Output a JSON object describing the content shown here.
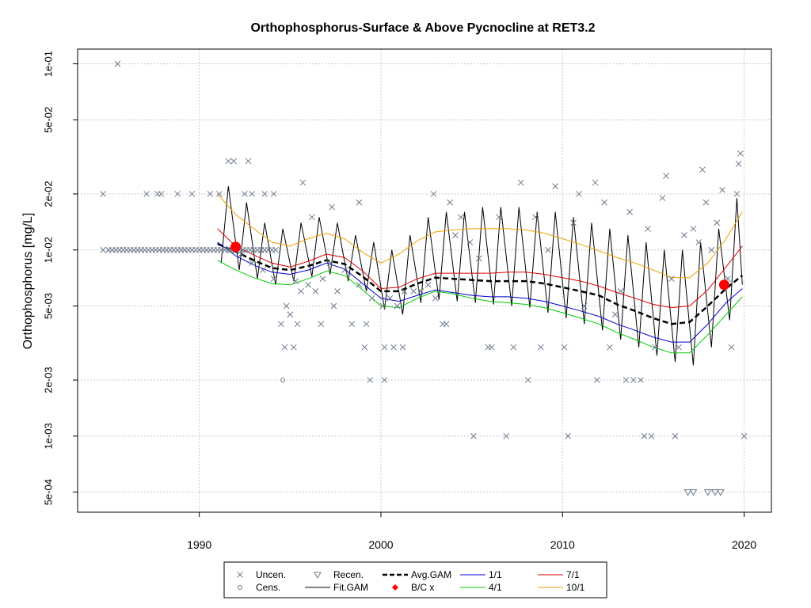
{
  "chart_data": {
    "type": "scatter",
    "title": "Orthophosphorus-Surface & Above Pycnocline at RET3.2",
    "xlabel": "",
    "ylabel": "Orthophosphorus [mg/L]",
    "y_scale": "log",
    "xlim": [
      1983.3,
      2021.5
    ],
    "ylim": [
      0.00039,
      0.12
    ],
    "x_ticks": [
      {
        "value": 1990,
        "label": "1990"
      },
      {
        "value": 2000,
        "label": "2000"
      },
      {
        "value": 2010,
        "label": "2010"
      },
      {
        "value": 2020,
        "label": "2020"
      }
    ],
    "y_ticks": [
      {
        "value": 0.1,
        "label": "1e-01"
      },
      {
        "value": 0.05,
        "label": "5e-02"
      },
      {
        "value": 0.02,
        "label": "2e-02"
      },
      {
        "value": 0.01,
        "label": "1e-02"
      },
      {
        "value": 0.005,
        "label": "5e-03"
      },
      {
        "value": 0.002,
        "label": "2e-03"
      },
      {
        "value": 0.001,
        "label": "1e-03"
      },
      {
        "value": 0.0005,
        "label": "5e-04"
      }
    ],
    "grid": true,
    "colors": {
      "points": "#6b7a8c",
      "fit": "#000000",
      "avg": "#000000",
      "month_1": "#0000cc",
      "month_4": "#00cc00",
      "month_7": "#dd0000",
      "month_10": "#f0a000",
      "bc": "#ff0000",
      "grid": "#c8c8c8"
    },
    "uncensored_points": [
      [
        1984.7,
        0.01
      ],
      [
        1985,
        0.01
      ],
      [
        1985.2,
        0.01
      ],
      [
        1985.4,
        0.01
      ],
      [
        1985.6,
        0.01
      ],
      [
        1985.8,
        0.01
      ],
      [
        1986,
        0.01
      ],
      [
        1986.2,
        0.01
      ],
      [
        1986.4,
        0.01
      ],
      [
        1986.6,
        0.01
      ],
      [
        1986.8,
        0.01
      ],
      [
        1987,
        0.01
      ],
      [
        1987.2,
        0.01
      ],
      [
        1987.4,
        0.01
      ],
      [
        1987.6,
        0.01
      ],
      [
        1987.8,
        0.01
      ],
      [
        1988,
        0.01
      ],
      [
        1988.2,
        0.01
      ],
      [
        1988.4,
        0.01
      ],
      [
        1988.6,
        0.01
      ],
      [
        1988.8,
        0.01
      ],
      [
        1989,
        0.01
      ],
      [
        1989.2,
        0.01
      ],
      [
        1989.4,
        0.01
      ],
      [
        1989.6,
        0.01
      ],
      [
        1989.8,
        0.01
      ],
      [
        1990,
        0.01
      ],
      [
        1990.2,
        0.01
      ],
      [
        1990.4,
        0.01
      ],
      [
        1990.6,
        0.01
      ],
      [
        1990.8,
        0.01
      ],
      [
        1991,
        0.01
      ],
      [
        1991.2,
        0.01
      ],
      [
        1991.4,
        0.01
      ],
      [
        1991.6,
        0.01
      ],
      [
        1991.8,
        0.01
      ],
      [
        1992,
        0.01
      ],
      [
        1992.2,
        0.01
      ],
      [
        1992.4,
        0.01
      ],
      [
        1992.6,
        0.01
      ],
      [
        1992.8,
        0.01
      ],
      [
        1993,
        0.01
      ],
      [
        1993.2,
        0.01
      ],
      [
        1993.4,
        0.01
      ],
      [
        1993.6,
        0.01
      ],
      [
        1993.8,
        0.01
      ],
      [
        1994,
        0.01
      ],
      [
        1994.2,
        0.01
      ],
      [
        1984.7,
        0.02
      ],
      [
        1985.5,
        0.1
      ],
      [
        1987.1,
        0.02
      ],
      [
        1987.7,
        0.02
      ],
      [
        1987.9,
        0.02
      ],
      [
        1988.8,
        0.02
      ],
      [
        1989.6,
        0.02
      ],
      [
        1990.6,
        0.02
      ],
      [
        1991.1,
        0.02
      ],
      [
        1991.6,
        0.03
      ],
      [
        1991.9,
        0.03
      ],
      [
        1992.5,
        0.02
      ],
      [
        1992.9,
        0.02
      ],
      [
        1993.6,
        0.02
      ],
      [
        1994.1,
        0.02
      ],
      [
        1992.7,
        0.03
      ],
      [
        1995.7,
        0.023
      ],
      [
        1996.2,
        0.015
      ],
      [
        1997.3,
        0.017
      ],
      [
        1998.8,
        0.018
      ],
      [
        1991.7,
        0.01
      ],
      [
        1992.3,
        0.0095
      ],
      [
        1992.9,
        0.0085
      ],
      [
        1993.5,
        0.0078
      ],
      [
        1994.1,
        0.007
      ],
      [
        1994.5,
        0.004
      ],
      [
        1994.8,
        0.005
      ],
      [
        1995,
        0.0045
      ],
      [
        1995.3,
        0.0068
      ],
      [
        1995.6,
        0.006
      ],
      [
        1996,
        0.0065
      ],
      [
        1996.4,
        0.006
      ],
      [
        1996.8,
        0.007
      ],
      [
        1997.2,
        0.0085
      ],
      [
        1997.6,
        0.006
      ],
      [
        1998,
        0.0078
      ],
      [
        1998.4,
        0.004
      ],
      [
        1998.8,
        0.0065
      ],
      [
        1999.2,
        0.004
      ],
      [
        1999.5,
        0.0055
      ],
      [
        1994.7,
        0.003
      ],
      [
        1995.2,
        0.003
      ],
      [
        1995.4,
        0.004
      ],
      [
        1996.7,
        0.004
      ],
      [
        1997.4,
        0.005
      ],
      [
        1999.1,
        0.003
      ],
      [
        1999.4,
        0.002
      ],
      [
        2000.2,
        0.002
      ],
      [
        2000.2,
        0.003
      ],
      [
        2000.7,
        0.003
      ],
      [
        2001.2,
        0.003
      ],
      [
        2000.1,
        0.005
      ],
      [
        2000.5,
        0.0055
      ],
      [
        2000.9,
        0.005
      ],
      [
        2001.3,
        0.006
      ],
      [
        2001.8,
        0.006
      ],
      [
        2002.2,
        0.006
      ],
      [
        2002.6,
        0.0065
      ],
      [
        2003.0,
        0.0055
      ],
      [
        2003.4,
        0.004
      ],
      [
        2003.6,
        0.004
      ],
      [
        2002.9,
        0.02
      ],
      [
        2003.8,
        0.018
      ],
      [
        2004.1,
        0.012
      ],
      [
        2004.4,
        0.015
      ],
      [
        2004.9,
        0.011
      ],
      [
        2005.1,
        0.001
      ],
      [
        2005.4,
        0.009
      ],
      [
        2005.9,
        0.003
      ],
      [
        2006.1,
        0.003
      ],
      [
        2006.5,
        0.015
      ],
      [
        2006.9,
        0.001
      ],
      [
        2007.3,
        0.003
      ],
      [
        2007.7,
        0.023
      ],
      [
        2008.1,
        0.002
      ],
      [
        2008.5,
        0.015
      ],
      [
        2008.8,
        0.003
      ],
      [
        2009.2,
        0.01
      ],
      [
        2009.6,
        0.022
      ],
      [
        2010.1,
        0.003
      ],
      [
        2010.3,
        0.001
      ],
      [
        2010.6,
        0.014
      ],
      [
        2010.9,
        0.02
      ],
      [
        2011.2,
        0.005
      ],
      [
        2011.8,
        0.023
      ],
      [
        2011.9,
        0.002
      ],
      [
        2012.3,
        0.018
      ],
      [
        2012.6,
        0.003
      ],
      [
        2012.9,
        0.0045
      ],
      [
        2013.2,
        0.006
      ],
      [
        2013.5,
        0.002
      ],
      [
        2013.7,
        0.016
      ],
      [
        2013.9,
        0.002
      ],
      [
        2014.3,
        0.002
      ],
      [
        2014.5,
        0.001
      ],
      [
        2014.7,
        0.013
      ],
      [
        2014.9,
        0.001
      ],
      [
        2015.1,
        0.003
      ],
      [
        2015.5,
        0.019
      ],
      [
        2015.7,
        0.025
      ],
      [
        2016,
        0.007
      ],
      [
        2016.2,
        0.001
      ],
      [
        2016.4,
        0.003
      ],
      [
        2016.7,
        0.012
      ],
      [
        2017.2,
        0.013
      ],
      [
        2017.5,
        0.011
      ],
      [
        2017.7,
        0.027
      ],
      [
        2017.9,
        0.018
      ],
      [
        2018.2,
        0.01
      ],
      [
        2018.5,
        0.014
      ],
      [
        2018.8,
        0.021
      ],
      [
        2019.1,
        0.007
      ],
      [
        2019.3,
        0.003
      ],
      [
        2019.6,
        0.02
      ],
      [
        2019.7,
        0.029
      ],
      [
        2019.8,
        0.033
      ],
      [
        2020,
        0.001
      ]
    ],
    "censored_points": [
      [
        1994.6,
        0.002
      ]
    ],
    "recensored_points": [
      [
        2016.9,
        0.0005
      ],
      [
        2017.2,
        0.0005
      ],
      [
        2018.0,
        0.0005
      ],
      [
        2018.4,
        0.0005
      ],
      [
        2018.7,
        0.0005
      ]
    ],
    "fit_gam_peaks": [
      [
        1991.6,
        0.022
      ],
      [
        1992.6,
        0.018
      ],
      [
        1993.6,
        0.014
      ],
      [
        1994.6,
        0.013
      ],
      [
        1995.6,
        0.014
      ],
      [
        1996.6,
        0.015
      ],
      [
        1997.6,
        0.014
      ],
      [
        1998.6,
        0.012
      ],
      [
        1999.6,
        0.011
      ],
      [
        2000.6,
        0.01
      ],
      [
        2001.6,
        0.012
      ],
      [
        2002.6,
        0.015
      ],
      [
        2003.6,
        0.016
      ],
      [
        2004.6,
        0.016
      ],
      [
        2005.6,
        0.017
      ],
      [
        2006.6,
        0.017
      ],
      [
        2007.6,
        0.017
      ],
      [
        2008.6,
        0.016
      ],
      [
        2009.6,
        0.016
      ],
      [
        2010.6,
        0.015
      ],
      [
        2011.6,
        0.014
      ],
      [
        2012.6,
        0.013
      ],
      [
        2013.6,
        0.012
      ],
      [
        2014.6,
        0.011
      ],
      [
        2015.6,
        0.01
      ],
      [
        2016.6,
        0.01
      ],
      [
        2017.6,
        0.011
      ],
      [
        2018.6,
        0.013
      ],
      [
        2019.6,
        0.019
      ]
    ],
    "fit_gam_troughs": [
      [
        1991.2,
        0.0085
      ],
      [
        1992.2,
        0.0078
      ],
      [
        1993.2,
        0.007
      ],
      [
        1994.2,
        0.0065
      ],
      [
        1995.2,
        0.0068
      ],
      [
        1996.2,
        0.0072
      ],
      [
        1997.2,
        0.0074
      ],
      [
        1998.2,
        0.0068
      ],
      [
        1999.2,
        0.006
      ],
      [
        2000.2,
        0.0048
      ],
      [
        2001.2,
        0.0045
      ],
      [
        2002.2,
        0.0052
      ],
      [
        2003.2,
        0.0054
      ],
      [
        2004.2,
        0.0053
      ],
      [
        2005.2,
        0.0052
      ],
      [
        2006.2,
        0.0051
      ],
      [
        2007.2,
        0.005
      ],
      [
        2008.2,
        0.0049
      ],
      [
        2009.2,
        0.0046
      ],
      [
        2010.2,
        0.0043
      ],
      [
        2011.2,
        0.004
      ],
      [
        2012.2,
        0.0037
      ],
      [
        2013.2,
        0.0033
      ],
      [
        2014.2,
        0.003
      ],
      [
        2015.2,
        0.0027
      ],
      [
        2016.2,
        0.0025
      ],
      [
        2017.2,
        0.0024
      ],
      [
        2018.2,
        0.003
      ],
      [
        2019.2,
        0.0042
      ],
      [
        2019.9,
        0.0065
      ]
    ],
    "series": [
      {
        "name": "Avg.GAM",
        "x": [
          1991,
          1992,
          1993,
          1994,
          1995,
          1996,
          1997,
          1998,
          1999,
          2000,
          2001,
          2002,
          2003,
          2004,
          2005,
          2006,
          2007,
          2008,
          2009,
          2010,
          2011,
          2012,
          2013,
          2014,
          2015,
          2016,
          2017,
          2018,
          2019,
          2019.9
        ],
        "y": [
          0.0108,
          0.0098,
          0.0088,
          0.008,
          0.0078,
          0.0082,
          0.0088,
          0.0084,
          0.0072,
          0.006,
          0.006,
          0.0066,
          0.0071,
          0.007,
          0.0069,
          0.0068,
          0.0068,
          0.0068,
          0.0066,
          0.0063,
          0.006,
          0.0057,
          0.0051,
          0.0047,
          0.0043,
          0.004,
          0.0041,
          0.005,
          0.0062,
          0.0073
        ]
      },
      {
        "name": "1/1",
        "x": [
          1991,
          1992,
          1993,
          1994,
          1995,
          1996,
          1997,
          1998,
          1999,
          2000,
          2001,
          2002,
          2003,
          2004,
          2005,
          2006,
          2007,
          2008,
          2009,
          2010,
          2011,
          2012,
          2013,
          2014,
          2015,
          2016,
          2017,
          2018,
          2019,
          2019.9
        ],
        "y": [
          0.011,
          0.0093,
          0.0083,
          0.0076,
          0.0074,
          0.0078,
          0.0085,
          0.0079,
          0.0066,
          0.0055,
          0.0053,
          0.0057,
          0.0061,
          0.0059,
          0.0057,
          0.0056,
          0.0056,
          0.0055,
          0.0053,
          0.005,
          0.0047,
          0.0044,
          0.004,
          0.0037,
          0.0034,
          0.0032,
          0.0032,
          0.004,
          0.0052,
          0.0062
        ]
      },
      {
        "name": "4/1",
        "x": [
          1991,
          1992,
          1993,
          1994,
          1995,
          1996,
          1997,
          1998,
          1999,
          2000,
          2001,
          2002,
          2003,
          2004,
          2005,
          2006,
          2007,
          2008,
          2009,
          2010,
          2011,
          2012,
          2013,
          2014,
          2015,
          2016,
          2017,
          2018,
          2019,
          2019.9
        ],
        "y": [
          0.0088,
          0.0078,
          0.0071,
          0.0066,
          0.0065,
          0.007,
          0.0077,
          0.0073,
          0.0061,
          0.005,
          0.0049,
          0.0055,
          0.006,
          0.0058,
          0.0055,
          0.0053,
          0.0052,
          0.0051,
          0.0049,
          0.0046,
          0.0043,
          0.004,
          0.0036,
          0.0033,
          0.003,
          0.0028,
          0.0028,
          0.0035,
          0.0045,
          0.0056
        ]
      },
      {
        "name": "7/1",
        "x": [
          1991,
          1992,
          1993,
          1994,
          1995,
          1996,
          1997,
          1998,
          1999,
          2000,
          2001,
          2002,
          2003,
          2004,
          2005,
          2006,
          2007,
          2008,
          2009,
          2010,
          2011,
          2012,
          2013,
          2014,
          2015,
          2016,
          2017,
          2018,
          2019,
          2019.9
        ],
        "y": [
          0.013,
          0.0105,
          0.0094,
          0.0085,
          0.0081,
          0.0087,
          0.0095,
          0.0091,
          0.0077,
          0.0062,
          0.0063,
          0.007,
          0.0075,
          0.0075,
          0.0075,
          0.0075,
          0.0076,
          0.0076,
          0.0074,
          0.0071,
          0.0068,
          0.0064,
          0.0059,
          0.0055,
          0.0051,
          0.0049,
          0.005,
          0.0061,
          0.0081,
          0.0105
        ]
      },
      {
        "name": "10/1",
        "x": [
          1991,
          1992,
          1993,
          1994,
          1995,
          1996,
          1997,
          1998,
          1999,
          2000,
          2001,
          2002,
          2003,
          2004,
          2005,
          2006,
          2007,
          2008,
          2009,
          2010,
          2011,
          2012,
          2013,
          2014,
          2015,
          2016,
          2017,
          2018,
          2019,
          2019.9
        ],
        "y": [
          0.02,
          0.0155,
          0.013,
          0.011,
          0.0105,
          0.0115,
          0.0123,
          0.0115,
          0.0097,
          0.0085,
          0.0095,
          0.0112,
          0.0125,
          0.0128,
          0.013,
          0.013,
          0.013,
          0.0128,
          0.0123,
          0.0115,
          0.0107,
          0.0099,
          0.0091,
          0.0085,
          0.0078,
          0.0071,
          0.0071,
          0.0085,
          0.0115,
          0.016
        ]
      }
    ],
    "bc_points": [
      [
        1992,
        0.0104
      ],
      [
        2018.9,
        0.0065
      ]
    ],
    "legend": {
      "placement": "bottom",
      "entries": [
        {
          "label": "Uncen.",
          "symbol": "x"
        },
        {
          "label": "Cens.",
          "symbol": "circle"
        },
        {
          "label": "Recen.",
          "symbol": "triangle-down"
        },
        {
          "label": "Fit.GAM",
          "symbol": "line-black"
        },
        {
          "label": "Avg.GAM",
          "symbol": "dashed-black"
        },
        {
          "label": "B/C x",
          "symbol": "red-diamond"
        },
        {
          "label": "1/1",
          "symbol": "line-blue"
        },
        {
          "label": "4/1",
          "symbol": "line-green"
        },
        {
          "label": "7/1",
          "symbol": "line-red"
        },
        {
          "label": "10/1",
          "symbol": "line-orange"
        }
      ]
    }
  }
}
